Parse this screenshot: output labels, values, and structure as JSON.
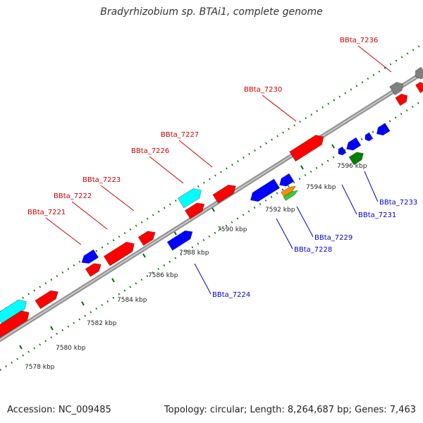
{
  "title": "Bradyrhizobium sp. BTAi1, complete genome",
  "footer": {
    "accession": "Accession: NC_009485",
    "summary": "Topology: circular; Length: 8,264,687 bp; Genes: 7,463"
  },
  "colors": {
    "forward_gene": "#ff0000",
    "reverse_gene": "#0000ff",
    "rna": "#00ffff",
    "pseudo": "#808080",
    "other": "#008000",
    "label_forward": "#cc0000",
    "label_reverse": "#0000cc",
    "tick": "#006400"
  },
  "scale": {
    "tick_labels": [
      "7578 kbp",
      "7580 kbp",
      "7582 kbp",
      "7584 kbp",
      "7586 kbp",
      "7588 kbp",
      "7590 kbp",
      "7592 kbp",
      "7594 kbp",
      "7596 kbp"
    ]
  },
  "gene_labels": {
    "forward": [
      "BBta_7221",
      "BBta_7222",
      "BBta_7223",
      "BBta_7226",
      "BBta_7227",
      "BBta_7230",
      "BBta_7236"
    ],
    "reverse": [
      "BBta_7224",
      "BBta_7228",
      "BBta_7229",
      "BBta_7231",
      "BBta_7233"
    ]
  }
}
